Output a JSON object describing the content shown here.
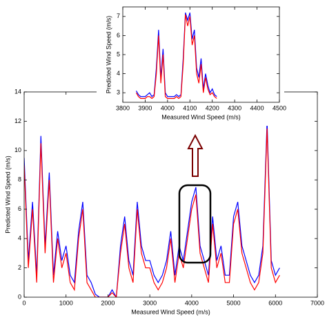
{
  "chart_data": [
    {
      "type": "line",
      "xlabel": "Measured Wind Speed (m/s)",
      "ylabel": "Predicted Wind Speed (m/s)",
      "x": [
        0,
        100,
        200,
        300,
        400,
        500,
        600,
        700,
        800,
        900,
        1000,
        1100,
        1200,
        1300,
        1400,
        1500,
        1600,
        1700,
        1800,
        1900,
        2000,
        2100,
        2200,
        2300,
        2400,
        2500,
        2600,
        2700,
        2800,
        2900,
        3000,
        3100,
        3200,
        3300,
        3400,
        3500,
        3600,
        3700,
        3800,
        3900,
        4000,
        4100,
        4200,
        4300,
        4400,
        4500,
        4600,
        4700,
        4800,
        4900,
        5000,
        5100,
        5200,
        5300,
        5400,
        5500,
        5600,
        5700,
        5800,
        5900,
        6000,
        6100
      ],
      "series": [
        {
          "color": "#0000ff",
          "values": [
            9.5,
            2.5,
            6.5,
            1.5,
            11,
            3.5,
            8.5,
            1.5,
            4.5,
            2.5,
            3.5,
            1.5,
            1,
            4.5,
            6.5,
            1.5,
            1,
            0.2,
            0,
            0,
            0,
            0.5,
            0,
            3.5,
            5.5,
            2.5,
            1.5,
            6.5,
            3.5,
            2.5,
            2.5,
            1.5,
            1,
            1.5,
            2.5,
            4.5,
            1.5,
            3.5,
            2.5,
            4.5,
            6.5,
            7.5,
            3.5,
            2.5,
            1.5,
            5.5,
            2.5,
            3.5,
            1.5,
            1.5,
            5.5,
            6.5,
            3.5,
            2.5,
            1.5,
            1,
            1.5,
            3.5,
            12,
            2.5,
            1.5,
            2
          ]
        },
        {
          "color": "#ff0000",
          "values": [
            9,
            2,
            6,
            1,
            10.5,
            3,
            8,
            1,
            4,
            2,
            3,
            1,
            0.5,
            4,
            6,
            1,
            0.5,
            0,
            0,
            0,
            0,
            0.3,
            0,
            3,
            5,
            2,
            1,
            6,
            3,
            2,
            2,
            1,
            0.5,
            1,
            2,
            4,
            1,
            3,
            2,
            4,
            6,
            7,
            3,
            2,
            1,
            5,
            2,
            3,
            1,
            1,
            5,
            6,
            3,
            2,
            1,
            0.5,
            1,
            3,
            11.5,
            2,
            1,
            1.5
          ]
        }
      ],
      "xlim": [
        0,
        7000
      ],
      "xticks": [
        0,
        1000,
        2000,
        3000,
        4000,
        5000,
        6000,
        7000
      ],
      "ylim": [
        0,
        14
      ],
      "yticks": [
        0,
        2,
        4,
        6,
        8,
        10,
        12,
        14
      ]
    },
    {
      "type": "line",
      "xlabel": "Measured Wind Speed (m/s)",
      "ylabel": "Predicted Wind Speed (m/s)",
      "x": [
        3860,
        3870,
        3880,
        3890,
        3900,
        3910,
        3920,
        3930,
        3940,
        3950,
        3960,
        3970,
        3980,
        3990,
        4000,
        4010,
        4020,
        4030,
        4040,
        4050,
        4060,
        4070,
        4080,
        4090,
        4100,
        4110,
        4120,
        4130,
        4140,
        4150,
        4160,
        4170,
        4180,
        4190,
        4200,
        4210,
        4220
      ],
      "series": [
        {
          "color": "#0000ff",
          "values": [
            3.1,
            2.9,
            2.8,
            2.8,
            2.8,
            2.9,
            3.0,
            2.8,
            2.9,
            4.3,
            6.3,
            3.8,
            5.3,
            3.0,
            2.8,
            2.8,
            2.8,
            2.8,
            2.9,
            2.8,
            2.9,
            4.8,
            7.2,
            6.8,
            7.2,
            5.8,
            6.3,
            4.3,
            3.8,
            4.8,
            3.2,
            4.0,
            3.4,
            3.0,
            3.2,
            2.9,
            2.8
          ]
        },
        {
          "color": "#ff0000",
          "values": [
            3.0,
            2.8,
            2.7,
            2.7,
            2.7,
            2.8,
            2.8,
            2.7,
            2.8,
            4.0,
            6.0,
            3.5,
            5.0,
            2.8,
            2.7,
            2.7,
            2.7,
            2.7,
            2.8,
            2.7,
            2.8,
            4.5,
            7.1,
            6.5,
            7.0,
            5.5,
            6.0,
            4.0,
            3.5,
            4.5,
            3.0,
            3.8,
            3.2,
            2.9,
            3.0,
            2.8,
            2.7
          ]
        }
      ],
      "xlim": [
        3800,
        4500
      ],
      "xticks": [
        3800,
        3900,
        4000,
        4100,
        4200,
        4300,
        4400,
        4500
      ],
      "ylim": [
        2.5,
        7.5
      ],
      "yticks": [
        3,
        4,
        5,
        6,
        7
      ]
    }
  ]
}
